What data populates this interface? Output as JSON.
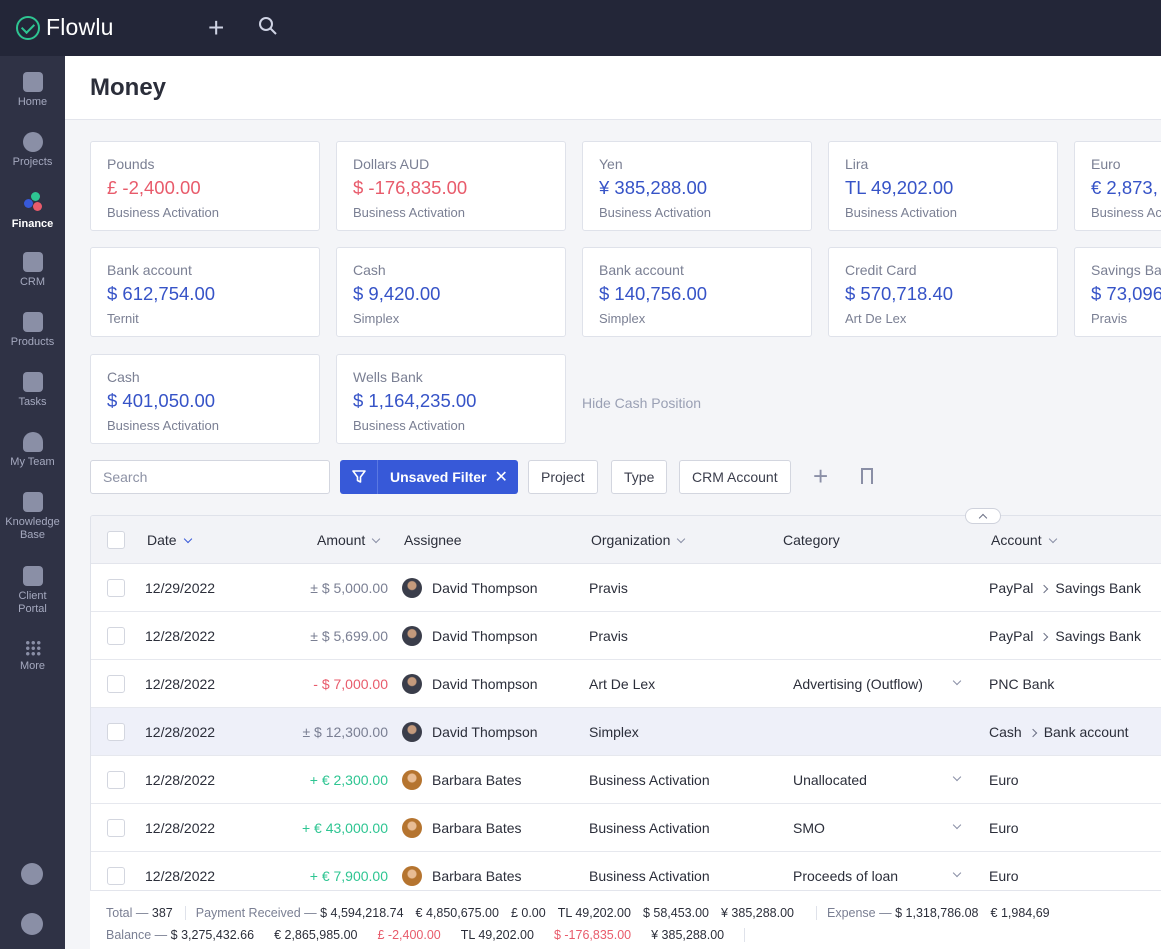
{
  "app": {
    "name": "Flowlu"
  },
  "sidebar": {
    "items": [
      {
        "label": "Home"
      },
      {
        "label": "Projects"
      },
      {
        "label": "Finance"
      },
      {
        "label": "CRM"
      },
      {
        "label": "Products"
      },
      {
        "label": "Tasks"
      },
      {
        "label": "My Team"
      },
      {
        "label": "Knowledge Base"
      },
      {
        "label": "Client Portal"
      },
      {
        "label": "More"
      }
    ]
  },
  "page": {
    "title": "Money"
  },
  "cash_position": [
    {
      "name": "Pounds",
      "amount": "£ -2,400.00",
      "org": "Business Activation",
      "negative": true
    },
    {
      "name": "Dollars AUD",
      "amount": "$ -176,835.00",
      "org": "Business Activation",
      "negative": true
    },
    {
      "name": "Yen",
      "amount": "¥ 385,288.00",
      "org": "Business Activation"
    },
    {
      "name": "Lira",
      "amount": "TL 49,202.00",
      "org": "Business Activation"
    },
    {
      "name": "Euro",
      "amount": "€ 2,873,",
      "org": "Business Ac"
    },
    {
      "name": "Bank account",
      "amount": "$ 612,754.00",
      "org": "Ternit"
    },
    {
      "name": "Cash",
      "amount": "$ 9,420.00",
      "org": "Simplex"
    },
    {
      "name": "Bank account",
      "amount": "$ 140,756.00",
      "org": "Simplex"
    },
    {
      "name": "Credit Card",
      "amount": "$ 570,718.40",
      "org": "Art De Lex"
    },
    {
      "name": "Savings Ba",
      "amount": "$ 73,096",
      "org": "Pravis"
    },
    {
      "name": "Cash",
      "amount": "$ 401,050.00",
      "org": "Business Activation"
    },
    {
      "name": "Wells Bank",
      "amount": "$ 1,164,235.00",
      "org": "Business Activation"
    }
  ],
  "hide_cash_position": "Hide Cash Position",
  "toolbar": {
    "search_placeholder": "Search",
    "filter_label": "Unsaved Filter",
    "chips": [
      "Project",
      "Type",
      "CRM Account"
    ]
  },
  "table": {
    "headers": {
      "date": "Date",
      "amount": "Amount",
      "assignee": "Assignee",
      "organization": "Organization",
      "category": "Category",
      "account": "Account"
    },
    "rows": [
      {
        "date": "12/29/2022",
        "amount": "± $ 5,000.00",
        "kind": "neu",
        "assignee": "David Thompson",
        "avatar": "m",
        "organization": "Pravis",
        "category": "",
        "account_from": "PayPal",
        "account_to": "Savings Bank"
      },
      {
        "date": "12/28/2022",
        "amount": "± $ 5,699.00",
        "kind": "neu",
        "assignee": "David Thompson",
        "avatar": "m",
        "organization": "Pravis",
        "category": "",
        "account_from": "PayPal",
        "account_to": "Savings Bank"
      },
      {
        "date": "12/28/2022",
        "amount": "- $ 7,000.00",
        "kind": "neg",
        "assignee": "David Thompson",
        "avatar": "m",
        "organization": "Art De Lex",
        "category": "Advertising (Outflow)",
        "account_from": "PNC Bank",
        "account_to": ""
      },
      {
        "date": "12/28/2022",
        "amount": "± $ 12,300.00",
        "kind": "neu",
        "assignee": "David Thompson",
        "avatar": "m",
        "organization": "Simplex",
        "category": "",
        "account_from": "Cash",
        "account_to": "Bank account",
        "highlight": true
      },
      {
        "date": "12/28/2022",
        "amount": "+ € 2,300.00",
        "kind": "pos",
        "assignee": "Barbara Bates",
        "avatar": "f",
        "organization": "Business Activation",
        "category": "Unallocated",
        "account_from": "Euro",
        "account_to": ""
      },
      {
        "date": "12/28/2022",
        "amount": "+ € 43,000.00",
        "kind": "pos",
        "assignee": "Barbara Bates",
        "avatar": "f",
        "organization": "Business Activation",
        "category": "SMO",
        "account_from": "Euro",
        "account_to": ""
      },
      {
        "date": "12/28/2022",
        "amount": "+ € 7,900.00",
        "kind": "pos",
        "assignee": "Barbara Bates",
        "avatar": "f",
        "organization": "Business Activation",
        "category": "Proceeds of loan",
        "account_from": "Euro",
        "account_to": ""
      }
    ]
  },
  "totals": {
    "total_label": "Total —",
    "total_value": "387",
    "payment_label": "Payment Received —",
    "payment_values": [
      "$ 4,594,218.74",
      "€ 4,850,675.00",
      "£ 0.00",
      "TL 49,202.00",
      "$ 58,453.00",
      "¥ 385,288.00"
    ],
    "expense_label": "Expense —",
    "expense_values": [
      "$ 1,318,786.08",
      "€ 1,984,69"
    ],
    "balance_label": "Balance —",
    "balance_values": [
      {
        "v": "$ 3,275,432.66"
      },
      {
        "v": "€ 2,865,985.00"
      },
      {
        "v": "£ -2,400.00",
        "neg": true
      },
      {
        "v": "TL 49,202.00"
      },
      {
        "v": "$ -176,835.00",
        "neg": true
      },
      {
        "v": "¥ 385,288.00"
      }
    ]
  },
  "colors": {
    "accent": "#3759d8",
    "positive": "#2ec592",
    "negative": "#e85b6b",
    "topbar": "#232638",
    "sidebar": "#2f3245"
  }
}
